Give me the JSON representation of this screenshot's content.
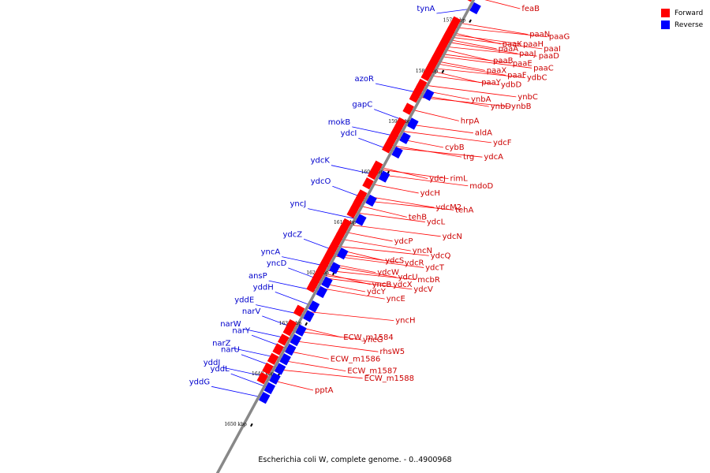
{
  "legend": {
    "forward_label": "Forward",
    "reverse_label": "Reverse",
    "forward_color": "#ff0000",
    "reverse_color": "#0000ff"
  },
  "caption": "Escherichia coli W, complete genome. - 0..4900968",
  "kbp_marks": [
    "1570 kbp",
    "1580 kbp",
    "1590 kbp",
    "1600 kbp",
    "1610 kbp",
    "1620 kbp",
    "1630 kbp",
    "1640 kbp",
    "1650 kbp"
  ],
  "forward_genes": [
    {
      "name": "feaB",
      "t": 0.005
    },
    {
      "name": "paaN",
      "t": 0.06
    },
    {
      "name": "paaG",
      "t": 0.07
    },
    {
      "name": "paaK",
      "t": 0.08
    },
    {
      "name": "paaH",
      "t": 0.085
    },
    {
      "name": "paaI",
      "t": 0.09
    },
    {
      "name": "paaA",
      "t": 0.095
    },
    {
      "name": "paaJ",
      "t": 0.1
    },
    {
      "name": "paaD",
      "t": 0.11
    },
    {
      "name": "paaB",
      "t": 0.115
    },
    {
      "name": "paaE",
      "t": 0.125
    },
    {
      "name": "paaC",
      "t": 0.13
    },
    {
      "name": "paaX",
      "t": 0.14
    },
    {
      "name": "paaF",
      "t": 0.145
    },
    {
      "name": "ydbC",
      "t": 0.155
    },
    {
      "name": "paaY",
      "t": 0.16
    },
    {
      "name": "ydbD",
      "t": 0.17
    },
    {
      "name": "ynbC",
      "t": 0.19
    },
    {
      "name": "ynbA",
      "t": 0.2
    },
    {
      "name": "ynbD",
      "t": 0.21
    },
    {
      "name": "ynbB",
      "t": 0.215
    },
    {
      "name": "hrpA",
      "t": 0.24
    },
    {
      "name": "aldA",
      "t": 0.27
    },
    {
      "name": "ydcF",
      "t": 0.285
    },
    {
      "name": "cybB",
      "t": 0.3
    },
    {
      "name": "trg",
      "t": 0.315
    },
    {
      "name": "ydcA",
      "t": 0.32
    },
    {
      "name": "ydcJ",
      "t": 0.36
    },
    {
      "name": "rimL",
      "t": 0.365
    },
    {
      "name": "mdoD",
      "t": 0.375
    },
    {
      "name": "ydcH",
      "t": 0.395
    },
    {
      "name": "ydcM2",
      "t": 0.42
    },
    {
      "name": "tehA",
      "t": 0.43
    },
    {
      "name": "tehB",
      "t": 0.44
    },
    {
      "name": "ydcL",
      "t": 0.455
    },
    {
      "name": "ydcN",
      "t": 0.48
    },
    {
      "name": "ydcP",
      "t": 0.495
    },
    {
      "name": "yncN",
      "t": 0.51
    },
    {
      "name": "ydcQ",
      "t": 0.525
    },
    {
      "name": "ydcS",
      "t": 0.53
    },
    {
      "name": "ydcR",
      "t": 0.54
    },
    {
      "name": "ydcT",
      "t": 0.545
    },
    {
      "name": "ydcW",
      "t": 0.56
    },
    {
      "name": "ydcU",
      "t": 0.565
    },
    {
      "name": "mcbR",
      "t": 0.575
    },
    {
      "name": "yncB",
      "t": 0.58
    },
    {
      "name": "ydcX",
      "t": 0.585
    },
    {
      "name": "ydcV",
      "t": 0.59
    },
    {
      "name": "ydcY",
      "t": 0.6
    },
    {
      "name": "yncE",
      "t": 0.61
    },
    {
      "name": "yncH",
      "t": 0.66
    },
    {
      "name": "ECW_m1584",
      "t": 0.69
    },
    {
      "name": "yncG",
      "t": 0.7
    },
    {
      "name": "rhsW5",
      "t": 0.72
    },
    {
      "name": "ECW_m1586",
      "t": 0.74
    },
    {
      "name": "ECW_m1587",
      "t": 0.76
    },
    {
      "name": "ECW_m1588",
      "t": 0.78
    },
    {
      "name": "pptA",
      "t": 0.8
    }
  ],
  "reverse_genes": [
    {
      "name": "tynA",
      "t": 0.02
    },
    {
      "name": "azoR",
      "t": 0.2
    },
    {
      "name": "gapC",
      "t": 0.26
    },
    {
      "name": "mokB",
      "t": 0.29
    },
    {
      "name": "ydcI",
      "t": 0.32
    },
    {
      "name": "ydcK",
      "t": 0.37
    },
    {
      "name": "ydcO",
      "t": 0.42
    },
    {
      "name": "yncJ",
      "t": 0.46
    },
    {
      "name": "ydcZ",
      "t": 0.53
    },
    {
      "name": "yncA",
      "t": 0.56
    },
    {
      "name": "yncD",
      "t": 0.59
    },
    {
      "name": "ansP",
      "t": 0.61
    },
    {
      "name": "yddH",
      "t": 0.64
    },
    {
      "name": "yddE",
      "t": 0.66
    },
    {
      "name": "narV",
      "t": 0.69
    },
    {
      "name": "narW",
      "t": 0.71
    },
    {
      "name": "narY",
      "t": 0.73
    },
    {
      "name": "narZ",
      "t": 0.75
    },
    {
      "name": "narU",
      "t": 0.77
    },
    {
      "name": "yddJ",
      "t": 0.79
    },
    {
      "name": "yddL",
      "t": 0.81
    },
    {
      "name": "yddG",
      "t": 0.83
    }
  ]
}
